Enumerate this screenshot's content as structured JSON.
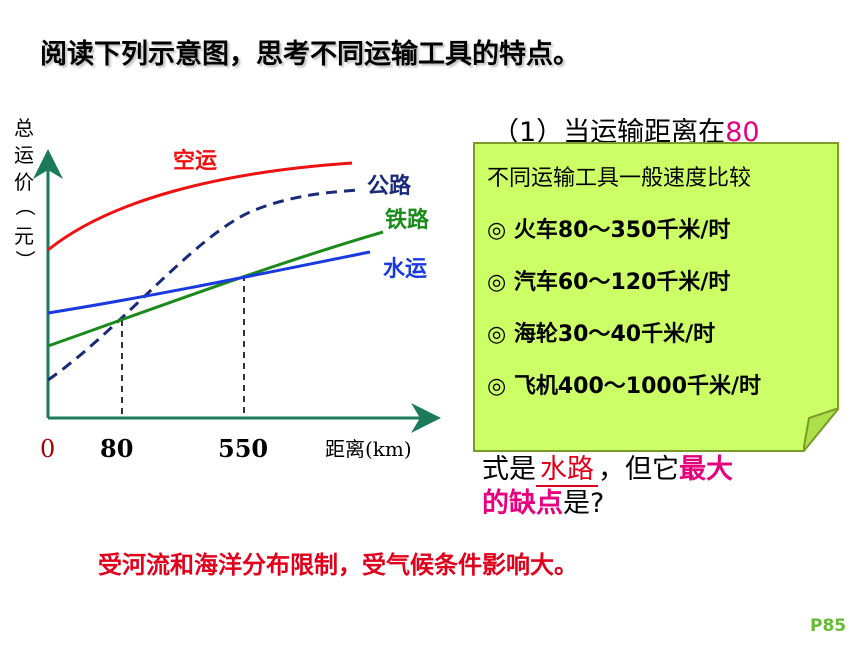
{
  "title": "阅读下列示意图，思考不同运输工具的特点。",
  "question": {
    "line1_prefix": "（1）当运输距离在",
    "line1_value": "80",
    "line2_prefix": "式是",
    "line2_answer": "水路",
    "line2_mid": "，但它",
    "line2_suffix": "最大",
    "line3_pink": "的缺点",
    "line3_rest": "是?"
  },
  "note": {
    "title": "不同运输工具一般速度比较",
    "items": [
      "◎ 火车80～350千米/时",
      "◎ 汽车60～120千米/时",
      "◎ 海轮30～40千米/时",
      "◎ 飞机400～1000千米/时"
    ]
  },
  "answer": "受河流和海洋分布限制，受气候条件影响大。",
  "page_number": "P85",
  "chart_data": {
    "type": "line",
    "ylabel": "总运价（元）",
    "xlabel": "距离(km)",
    "origin_label": "0",
    "x_ticks": [
      {
        "value": 80,
        "label": "80"
      },
      {
        "value": 550,
        "label": "550"
      }
    ],
    "series": [
      {
        "name": "空运",
        "color": "#ee1111",
        "style": "solid"
      },
      {
        "name": "公路",
        "color": "#1a2a7a",
        "style": "dashed"
      },
      {
        "name": "铁路",
        "color": "#1a8a1a",
        "style": "solid"
      },
      {
        "name": "水运",
        "color": "#1a3ae0",
        "style": "solid"
      }
    ],
    "grid": false
  }
}
